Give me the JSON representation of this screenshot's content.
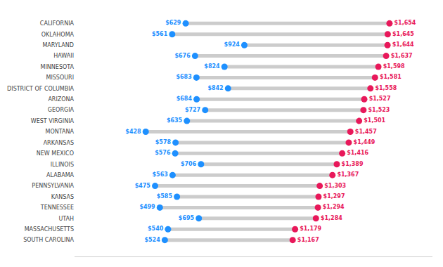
{
  "chart_data": {
    "type": "dumbbell",
    "categories": [
      "CALIFORNIA",
      "OKLAHOMA",
      "MARYLAND",
      "HAWAII",
      "MINNESOTA",
      "MISSOURI",
      "DISTRICT OF COLUMBIA",
      "ARIZONA",
      "GEORGIA",
      "WEST VIRGINIA",
      "MONTANA",
      "ARKANSAS",
      "NEW MEXICO",
      "ILLINOIS",
      "ALABAMA",
      "PENNSYLVANIA",
      "KANSAS",
      "TENNESSEE",
      "UTAH",
      "MASSACHUSETTS",
      "SOUTH CAROLINA"
    ],
    "series": [
      {
        "color": "#1E90FF",
        "values": [
          629,
          561,
          924,
          676,
          824,
          683,
          842,
          684,
          727,
          635,
          428,
          578,
          576,
          706,
          563,
          475,
          585,
          499,
          695,
          540,
          524
        ],
        "value_labels": [
          "$629",
          "$561",
          "$924",
          "$676",
          "$824",
          "$683",
          "$842",
          "$684",
          "$727",
          "$635",
          "$428",
          "$578",
          "$576",
          "$706",
          "$563",
          "$475",
          "$585",
          "$499",
          "$695",
          "$540",
          "$524"
        ]
      },
      {
        "color": "#E8185A",
        "values": [
          1654,
          1645,
          1644,
          1637,
          1598,
          1581,
          1558,
          1527,
          1523,
          1501,
          1457,
          1449,
          1416,
          1389,
          1367,
          1303,
          1297,
          1294,
          1284,
          1179,
          1167
        ],
        "value_labels": [
          "$1,654",
          "$1,645",
          "$1,644",
          "$1,637",
          "$1,598",
          "$1,581",
          "$1,558",
          "$1,527",
          "$1,523",
          "$1,501",
          "$1,457",
          "$1,449",
          "$1,416",
          "$1,389",
          "$1,367",
          "$1,303",
          "$1,297",
          "$1,294",
          "$1,284",
          "$1,179",
          "$1,167"
        ]
      }
    ],
    "color": "#CCCCCC",
    "xlim": [
      70,
      1870
    ],
    "tick_labels": "y",
    "data_labels": true,
    "grid": false
  }
}
